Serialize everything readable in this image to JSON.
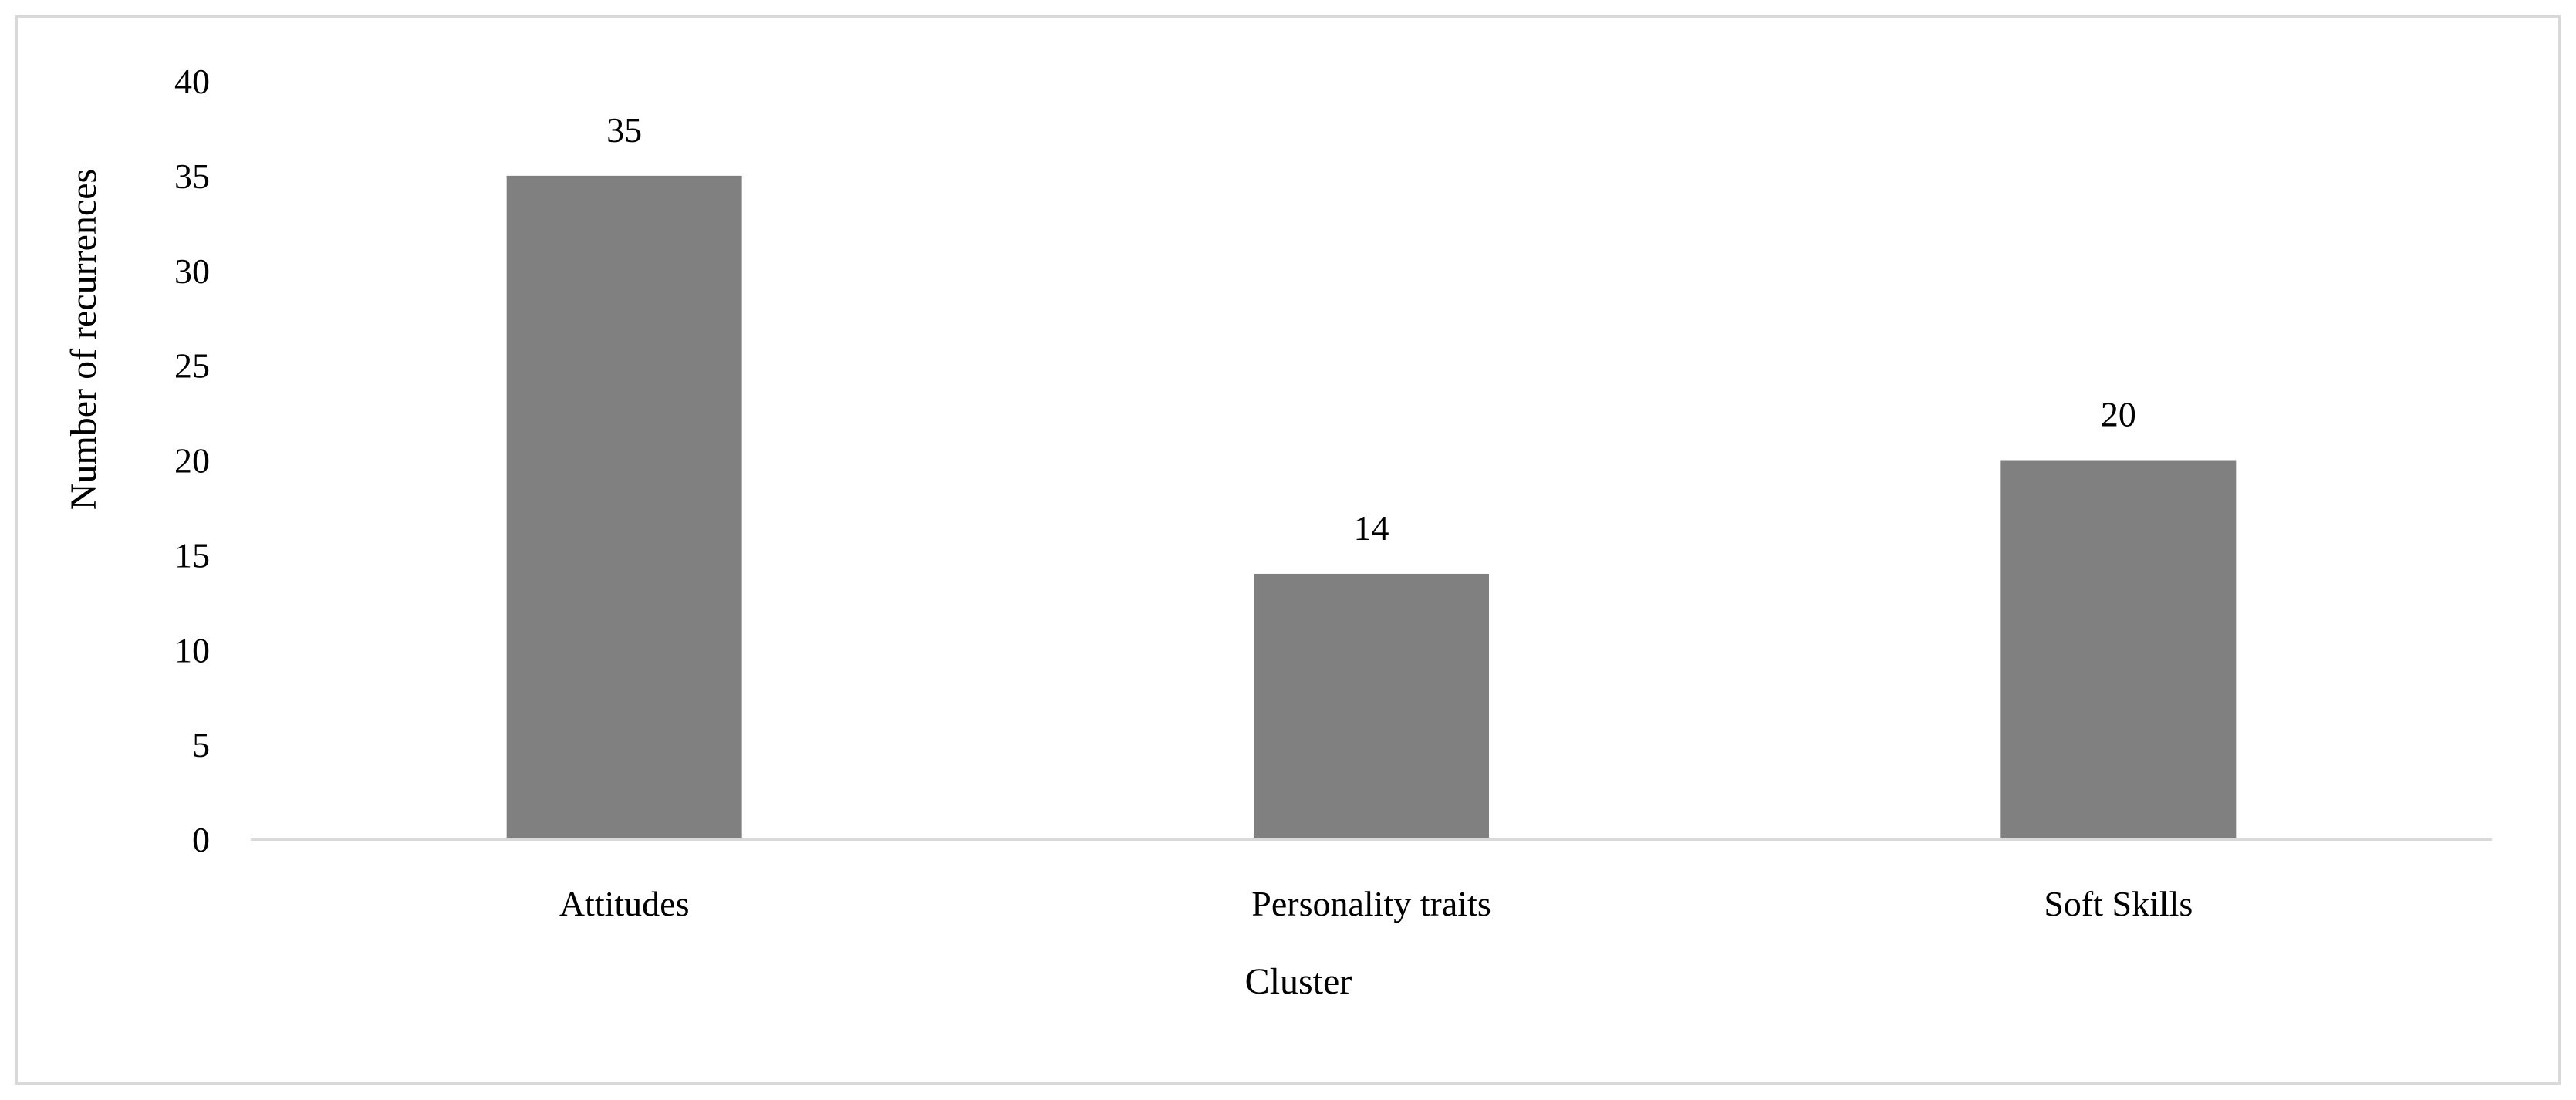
{
  "chart_data": {
    "type": "bar",
    "categories": [
      "Attitudes",
      "Personality traits",
      "Soft Skills"
    ],
    "values": [
      35,
      14,
      20
    ],
    "data_labels": [
      "35",
      "14",
      "20"
    ],
    "xlabel": "Cluster",
    "ylabel": "Number of recurrences",
    "ylim": [
      0,
      40
    ],
    "yticks": [
      "0",
      "5",
      "10",
      "15",
      "20",
      "25",
      "30",
      "35",
      "40"
    ],
    "grid": false,
    "legend": "none",
    "bar_color": "#808080",
    "axis_color": "#d9d9d9"
  }
}
